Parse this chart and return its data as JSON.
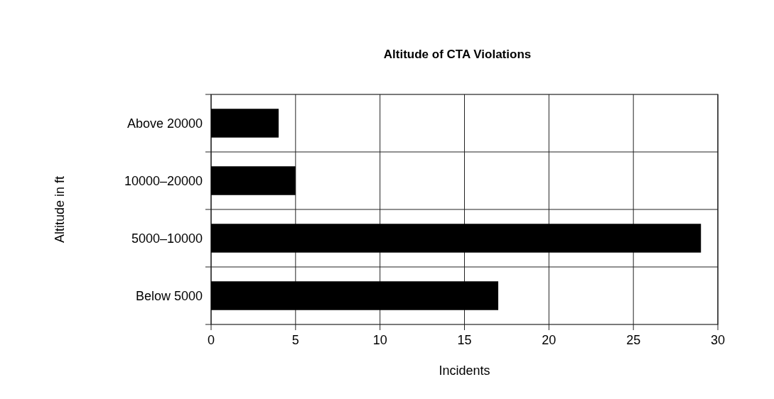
{
  "chart_data": {
    "type": "bar",
    "orientation": "horizontal",
    "title": "Altitude of CTA Violations",
    "xlabel": "Incidents",
    "ylabel": "Altitude in ft",
    "categories": [
      "Above 20000",
      "10000–20000",
      "5000–10000",
      "Below 5000"
    ],
    "values": [
      4,
      5,
      29,
      17
    ],
    "color": "#000000",
    "xlim": [
      0,
      30
    ],
    "xticks": [
      0,
      5,
      10,
      15,
      20,
      25,
      30
    ],
    "grid": true
  }
}
